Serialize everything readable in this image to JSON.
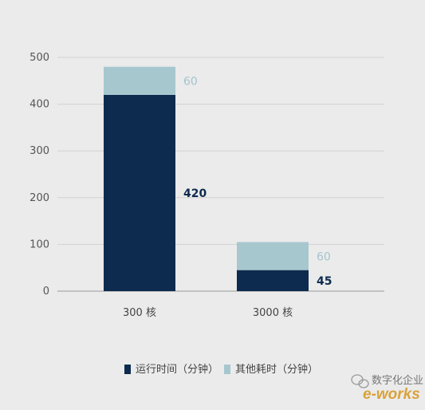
{
  "chart_data": {
    "type": "bar",
    "stacked": true,
    "categories": [
      "300 核",
      "3000 核"
    ],
    "series": [
      {
        "name": "运行时间（分钟）",
        "values": [
          420,
          45
        ],
        "color": "#0d2b4e"
      },
      {
        "name": "其他耗时（分钟）",
        "values": [
          60,
          60
        ],
        "color": "#a7c7cf"
      }
    ],
    "data_labels": [
      [
        "420",
        "60"
      ],
      [
        "45",
        "60"
      ]
    ],
    "y_ticks": [
      0,
      100,
      200,
      300,
      400,
      500
    ],
    "ylim": [
      0,
      500
    ],
    "grid": true,
    "legend_position": "bottom"
  },
  "watermark": {
    "text": "数字化企业",
    "logo_text": "e-works"
  }
}
